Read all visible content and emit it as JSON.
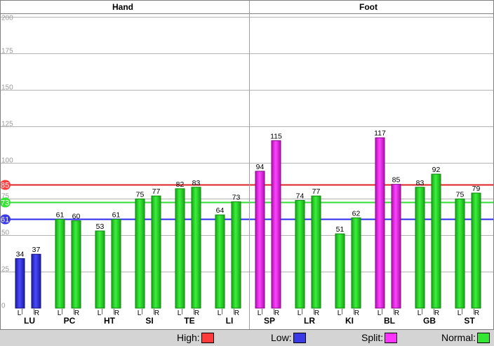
{
  "chart_data": {
    "type": "bar",
    "ylim": [
      0,
      200
    ],
    "y_ticks": [
      0,
      25,
      50,
      75,
      100,
      125,
      150,
      175,
      200
    ],
    "grid": true,
    "panels": [
      {
        "title": "Hand",
        "groups": [
          "LU",
          "PC",
          "HT",
          "SI",
          "TE",
          "LI"
        ]
      },
      {
        "title": "Foot",
        "groups": [
          "SP",
          "LR",
          "KI",
          "BL",
          "GB",
          "ST"
        ]
      }
    ],
    "side_labels": [
      "L",
      "R"
    ],
    "groups": [
      {
        "name": "LU",
        "values": [
          34,
          37
        ],
        "status": [
          "low",
          "low"
        ]
      },
      {
        "name": "PC",
        "values": [
          61,
          60
        ],
        "status": [
          "normal",
          "normal"
        ]
      },
      {
        "name": "HT",
        "values": [
          53,
          61
        ],
        "status": [
          "normal",
          "normal"
        ]
      },
      {
        "name": "SI",
        "values": [
          75,
          77
        ],
        "status": [
          "normal",
          "normal"
        ]
      },
      {
        "name": "TE",
        "values": [
          82,
          83
        ],
        "status": [
          "normal",
          "normal"
        ]
      },
      {
        "name": "LI",
        "values": [
          64,
          73
        ],
        "status": [
          "normal",
          "normal"
        ]
      },
      {
        "name": "SP",
        "values": [
          94,
          115
        ],
        "status": [
          "split",
          "split"
        ]
      },
      {
        "name": "LR",
        "values": [
          74,
          77
        ],
        "status": [
          "normal",
          "normal"
        ]
      },
      {
        "name": "KI",
        "values": [
          51,
          62
        ],
        "status": [
          "normal",
          "normal"
        ]
      },
      {
        "name": "BL",
        "values": [
          117,
          85
        ],
        "status": [
          "split",
          "split"
        ]
      },
      {
        "name": "GB",
        "values": [
          83,
          92
        ],
        "status": [
          "normal",
          "normal"
        ]
      },
      {
        "name": "ST",
        "values": [
          75,
          79
        ],
        "status": [
          "normal",
          "normal"
        ]
      }
    ],
    "reference_lines": [
      {
        "label": "85",
        "value": 85,
        "kind": "high"
      },
      {
        "label": "73",
        "value": 73,
        "kind": "normal"
      },
      {
        "label": "61",
        "value": 61,
        "kind": "low"
      }
    ],
    "legend": [
      {
        "label": "High:",
        "kind": "high"
      },
      {
        "label": "Low:",
        "kind": "low"
      },
      {
        "label": "Split:",
        "kind": "split"
      },
      {
        "label": "Normal:",
        "kind": "normal"
      }
    ],
    "legend_placement": "bottom"
  },
  "colors": {
    "high": "#ff3b3b",
    "low": "#3a3ae6",
    "split": "#ff33ff",
    "normal": "#33e633",
    "line_high": "#e02020",
    "line_normal": "#33dd33",
    "line_low": "#2828ee",
    "grid": "#b4b4b4"
  }
}
